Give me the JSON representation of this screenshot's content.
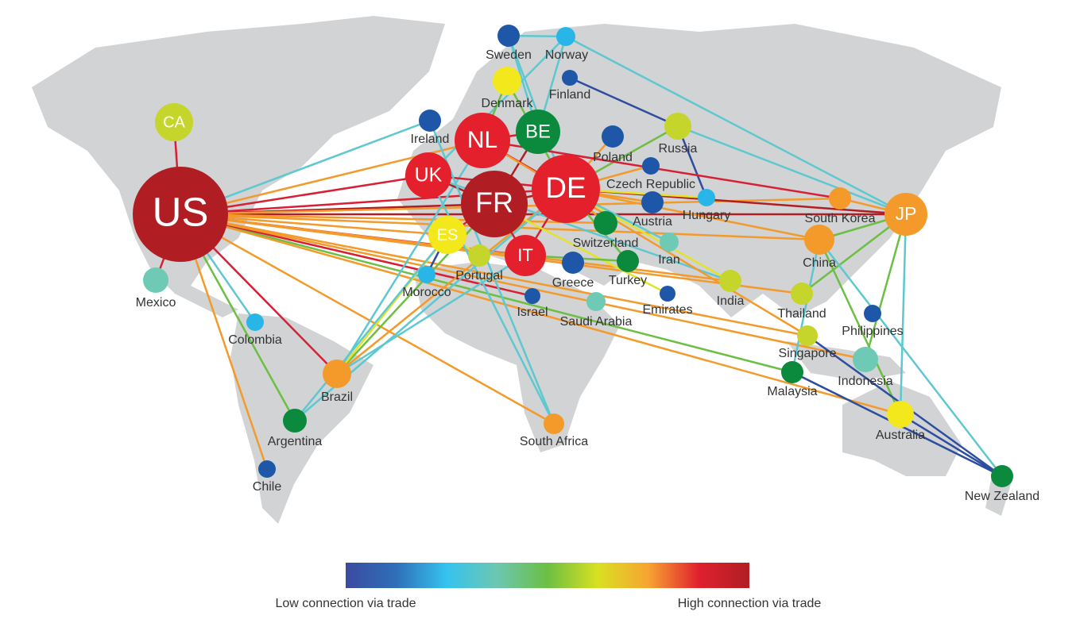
{
  "nodes": [
    {
      "label": "US",
      "color": "#b01e24"
    },
    {
      "label": "CA",
      "color": "#c5d52b"
    },
    {
      "label": "Mexico",
      "color": "#6fcab5"
    },
    {
      "label": "Colombia",
      "color": "#28b6e8"
    },
    {
      "label": "Brazil",
      "color": "#f39a2b"
    },
    {
      "label": "Argentina",
      "color": "#0b8a3e"
    },
    {
      "label": "Chile",
      "color": "#1f57a8"
    },
    {
      "label": "UK",
      "color": "#e3202c"
    },
    {
      "label": "NL",
      "color": "#e3202c"
    },
    {
      "label": "BE",
      "color": "#0b8a3e"
    },
    {
      "label": "FR",
      "color": "#b01e24"
    },
    {
      "label": "DE",
      "color": "#e3202c"
    },
    {
      "label": "ES",
      "color": "#f2e81c"
    },
    {
      "label": "IT",
      "color": "#e3202c"
    },
    {
      "label": "Portugal",
      "color": "#c5d52b"
    },
    {
      "label": "Morocco",
      "color": "#28b6e8"
    },
    {
      "label": "Ireland",
      "color": "#1f57a8"
    },
    {
      "label": "Sweden",
      "color": "#1f57a8"
    },
    {
      "label": "Norway",
      "color": "#28b6e8"
    },
    {
      "label": "Denmark",
      "color": "#f2e81c"
    },
    {
      "label": "Finland",
      "color": "#1f57a8"
    },
    {
      "label": "Poland",
      "color": "#1f57a8"
    },
    {
      "label": "Russia",
      "color": "#c5d52b"
    },
    {
      "label": "Czech Republic",
      "color": "#1f57a8"
    },
    {
      "label": "Austria",
      "color": "#1f57a8"
    },
    {
      "label": "Hungary",
      "color": "#28b6e8"
    },
    {
      "label": "Switzerland",
      "color": "#0b8a3e"
    },
    {
      "label": "Greece",
      "color": "#1f57a8"
    },
    {
      "label": "Turkey",
      "color": "#0b8a3e"
    },
    {
      "label": "Iran",
      "color": "#6fcab5"
    },
    {
      "label": "Israel",
      "color": "#1f57a8"
    },
    {
      "label": "Saudi Arabia",
      "color": "#6fcab5"
    },
    {
      "label": "Emirates",
      "color": "#1f57a8"
    },
    {
      "label": "India",
      "color": "#c5d52b"
    },
    {
      "label": "South Africa",
      "color": "#f39a2b"
    },
    {
      "label": "China",
      "color": "#f39a2b"
    },
    {
      "label": "South Korea",
      "color": "#f39a2b"
    },
    {
      "label": "JP",
      "color": "#f39a2b"
    },
    {
      "label": "Thailand",
      "color": "#c5d52b"
    },
    {
      "label": "Philippines",
      "color": "#1f57a8"
    },
    {
      "label": "Singapore",
      "color": "#c5d52b"
    },
    {
      "label": "Malaysia",
      "color": "#0b8a3e"
    },
    {
      "label": "Indonesia",
      "color": "#6fcab5"
    },
    {
      "label": "Australia",
      "color": "#f2e81c"
    },
    {
      "label": "New Zealand",
      "color": "#0b8a3e"
    }
  ],
  "legend": {
    "low": "Low connection via trade",
    "high": "High connection via trade",
    "colors": [
      "#3b4ba0",
      "#2f6fb8",
      "#35c3ef",
      "#6cc7b0",
      "#6cbf43",
      "#d9e021",
      "#f7a431",
      "#e0202e",
      "#b01e24"
    ]
  }
}
